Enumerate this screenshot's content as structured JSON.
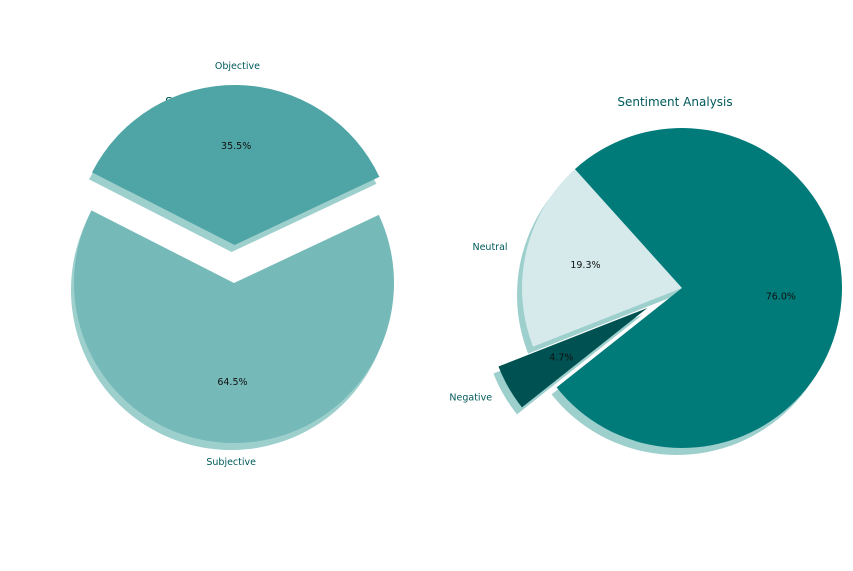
{
  "chart_data": [
    {
      "type": "pie",
      "title": "Subjectivity Analysis",
      "slices": [
        {
          "label": "Subjective",
          "value": 64.5,
          "pct_label": "64.5%",
          "color": "#76b9b9",
          "explode": false
        },
        {
          "label": "Objective",
          "value": 35.5,
          "pct_label": "35.5%",
          "color": "#4fa5a5",
          "explode": true
        }
      ],
      "shadow": true
    },
    {
      "type": "pie",
      "title": "Sentiment Analysis",
      "slices": [
        {
          "label": "Neutral",
          "value": 19.3,
          "pct_label": "19.3%",
          "color": "#d6eaeb",
          "explode": false
        },
        {
          "label": "Negative",
          "value": 4.7,
          "pct_label": "4.7%",
          "color": "#005252",
          "explode": true
        },
        {
          "label": "",
          "value": 76.0,
          "pct_label": "76.0%",
          "color": "#017b7a",
          "explode": false
        }
      ],
      "shadow": true
    }
  ],
  "colors": {
    "text": "#00595a",
    "shadow": "#9dcfcd"
  }
}
